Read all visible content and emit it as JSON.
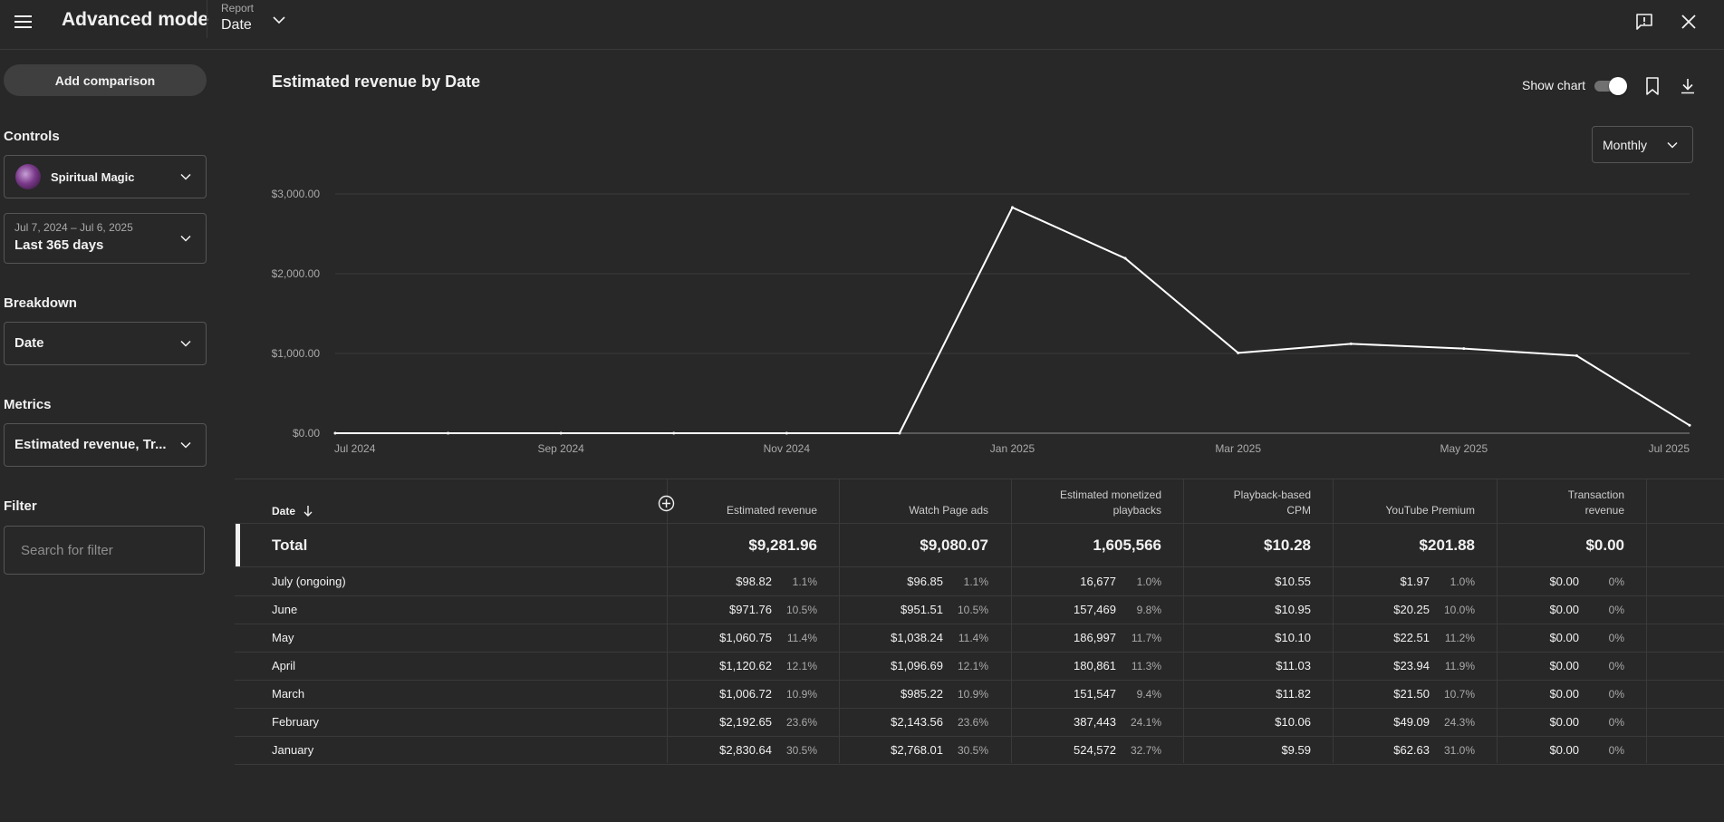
{
  "header": {
    "title": "Advanced mode",
    "report_label": "Report",
    "report_value": "Date"
  },
  "sidebar": {
    "add_comparison": "Add comparison",
    "controls_title": "Controls",
    "channel_name": "Spiritual Magic",
    "date_range": "Jul 7, 2024 – Jul 6, 2025",
    "date_preset": "Last 365 days",
    "breakdown_title": "Breakdown",
    "breakdown_value": "Date",
    "metrics_title": "Metrics",
    "metrics_value": "Estimated revenue, Tr...",
    "filter_title": "Filter",
    "filter_placeholder": "Search for filter"
  },
  "chart_controls": {
    "title": "Estimated revenue by Date",
    "show_chart_label": "Show chart",
    "show_chart_on": true,
    "period": "Monthly"
  },
  "chart_data": {
    "type": "line",
    "x": [
      "2024-07",
      "2024-08",
      "2024-09",
      "2024-10",
      "2024-11",
      "2024-12",
      "2025-01",
      "2025-02",
      "2025-03",
      "2025-04",
      "2025-05",
      "2025-06",
      "2025-07"
    ],
    "series": [
      {
        "values": [
          0,
          0,
          0,
          0,
          0,
          0,
          2830.64,
          2192.65,
          1006.72,
          1120.62,
          1060.75,
          971.76,
          98.82
        ]
      }
    ],
    "y_ticks": [
      "$0.00",
      "$1,000.00",
      "$2,000.00",
      "$3,000.00"
    ],
    "x_ticks": [
      "Jul 2024",
      "Sep 2024",
      "Nov 2024",
      "Jan 2025",
      "Mar 2025",
      "May 2025",
      "Jul 2025"
    ],
    "ylim": [
      0,
      3000
    ],
    "grid": true,
    "line_color": "#ffffff"
  },
  "table": {
    "date_header": "Date",
    "columns": [
      [
        "Estimated revenue"
      ],
      [
        "Watch Page ads"
      ],
      [
        "Estimated monetized",
        "playbacks"
      ],
      [
        "Playback-based",
        "CPM"
      ],
      [
        "YouTube Premium"
      ],
      [
        "Transaction",
        "revenue"
      ]
    ],
    "total": {
      "label": "Total",
      "values": [
        "$9,281.96",
        "$9,080.07",
        "1,605,566",
        "$10.28",
        "$201.88",
        "$0.00"
      ]
    },
    "rows": [
      {
        "label": "July (ongoing)",
        "values": [
          "$98.82",
          "1.1%",
          "$96.85",
          "1.1%",
          "16,677",
          "1.0%",
          "$10.55",
          "$1.97",
          "1.0%",
          "$0.00",
          "0%"
        ]
      },
      {
        "label": "June",
        "values": [
          "$971.76",
          "10.5%",
          "$951.51",
          "10.5%",
          "157,469",
          "9.8%",
          "$10.95",
          "$20.25",
          "10.0%",
          "$0.00",
          "0%"
        ]
      },
      {
        "label": "May",
        "values": [
          "$1,060.75",
          "11.4%",
          "$1,038.24",
          "11.4%",
          "186,997",
          "11.7%",
          "$10.10",
          "$22.51",
          "11.2%",
          "$0.00",
          "0%"
        ]
      },
      {
        "label": "April",
        "values": [
          "$1,120.62",
          "12.1%",
          "$1,096.69",
          "12.1%",
          "180,861",
          "11.3%",
          "$11.03",
          "$23.94",
          "11.9%",
          "$0.00",
          "0%"
        ]
      },
      {
        "label": "March",
        "values": [
          "$1,006.72",
          "10.9%",
          "$985.22",
          "10.9%",
          "151,547",
          "9.4%",
          "$11.82",
          "$21.50",
          "10.7%",
          "$0.00",
          "0%"
        ]
      },
      {
        "label": "February",
        "values": [
          "$2,192.65",
          "23.6%",
          "$2,143.56",
          "23.6%",
          "387,443",
          "24.1%",
          "$10.06",
          "$49.09",
          "24.3%",
          "$0.00",
          "0%"
        ]
      },
      {
        "label": "January",
        "values": [
          "$2,830.64",
          "30.5%",
          "$2,768.01",
          "30.5%",
          "524,572",
          "32.7%",
          "$9.59",
          "$62.63",
          "31.0%",
          "$0.00",
          "0%"
        ]
      }
    ]
  },
  "icons": {
    "menu": "hamburger-menu-icon",
    "report_dropdown": "chevron-down-icon",
    "feedback": "feedback-icon",
    "close": "close-icon",
    "bookmark": "bookmark-icon",
    "download": "download-icon",
    "sort": "arrow-down-icon",
    "add_column": "add-circle-icon"
  }
}
